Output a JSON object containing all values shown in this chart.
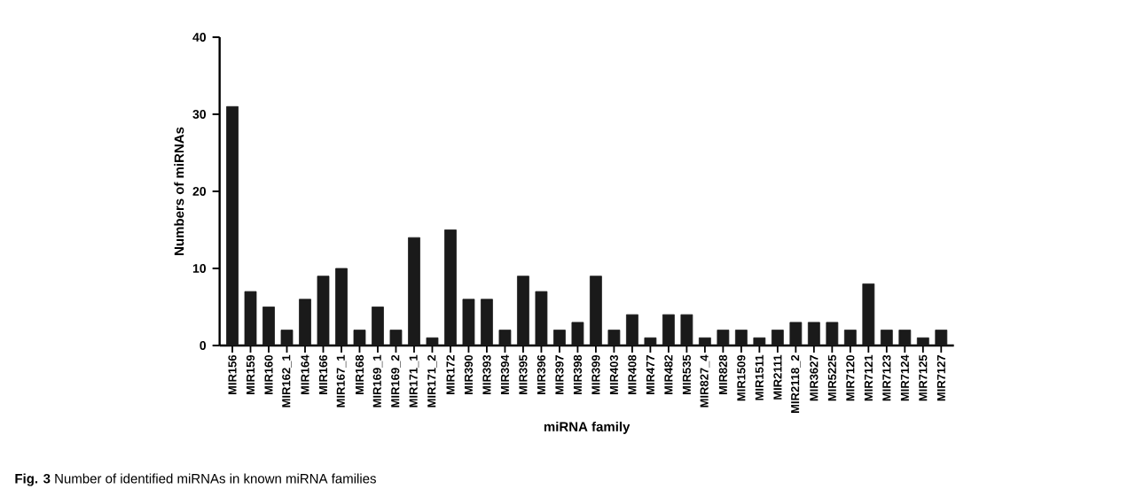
{
  "chart_data": {
    "type": "bar",
    "xlabel": "miRNA family",
    "ylabel": "Numbers of miRNAs",
    "categories": [
      "MIR156",
      "MIR159",
      "MIR160",
      "MIR162_1",
      "MIR164",
      "MIR166",
      "MIR167_1",
      "MIR168",
      "MIR169_1",
      "MIR169_2",
      "MIR171_1",
      "MIR171_2",
      "MIR172",
      "MIR390",
      "MIR393",
      "MIR394",
      "MIR395",
      "MIR396",
      "MIR397",
      "MIR398",
      "MIR399",
      "MIR403",
      "MIR408",
      "MIR477",
      "MIR482",
      "MIR535",
      "MIR827_4",
      "MIR828",
      "MIR1509",
      "MIR1511",
      "MIR2111",
      "MIR2118_2",
      "MIR3627",
      "MIR5225",
      "MIR7120",
      "MIR7121",
      "MIR7123",
      "MIR7124",
      "MIR7125",
      "MIR7127"
    ],
    "values": [
      31,
      7,
      5,
      2,
      6,
      9,
      10,
      2,
      5,
      2,
      14,
      1,
      15,
      6,
      6,
      2,
      9,
      7,
      2,
      3,
      9,
      2,
      4,
      1,
      4,
      4,
      1,
      2,
      2,
      1,
      2,
      3,
      3,
      3,
      2,
      8,
      2,
      2,
      1,
      2
    ],
    "color": "#1a1a1a",
    "ylim": [
      0,
      40
    ],
    "yticks": [
      0,
      10,
      20,
      30,
      40
    ],
    "annotations": [
      "**Fig. 3** Number of identified miRNAs in known miRNA families"
    ]
  }
}
